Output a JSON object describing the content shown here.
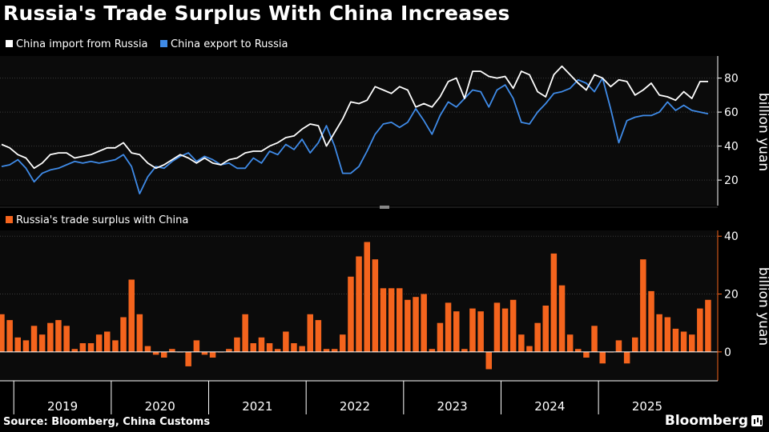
{
  "title": "Russia's Trade Surplus With China Increases",
  "source": "Source: Bloomberg, China Customs",
  "brand": "Bloomberg",
  "chart_data": [
    {
      "type": "line",
      "legend": [
        {
          "name": "China import from Russia",
          "color": "#ffffff"
        },
        {
          "name": "China export to Russia",
          "color": "#3f8be8"
        }
      ],
      "ylabel": "billion yuan",
      "ylim": [
        5,
        93
      ],
      "yticks": [
        20,
        40,
        60,
        80
      ],
      "x_start": "2018-11",
      "series": [
        {
          "name": "China import from Russia",
          "color": "#ffffff",
          "values": [
            41,
            39,
            35,
            33,
            27,
            30,
            35,
            36,
            36,
            33,
            34,
            35,
            37,
            39,
            39,
            42,
            36,
            35,
            30,
            27,
            29,
            32,
            35,
            33,
            30,
            33,
            30,
            29,
            32,
            33,
            36,
            37,
            37,
            40,
            42,
            45,
            46,
            50,
            53,
            52,
            40,
            48,
            56,
            66,
            65,
            67,
            75,
            73,
            71,
            75,
            73,
            63,
            65,
            63,
            69,
            78,
            80,
            68,
            84,
            84,
            81,
            80,
            81,
            74,
            84,
            82,
            72,
            69,
            82,
            87,
            82,
            77,
            73,
            82,
            80,
            75,
            79,
            78,
            70,
            73,
            77,
            70,
            69,
            67,
            72,
            68,
            78,
            78
          ]
        },
        {
          "name": "China export to Russia",
          "color": "#3f8be8",
          "values": [
            28,
            29,
            32,
            27,
            19,
            24,
            26,
            27,
            29,
            31,
            30,
            31,
            30,
            31,
            32,
            35,
            28,
            12,
            22,
            28,
            27,
            31,
            34,
            36,
            31,
            34,
            32,
            29,
            30,
            27,
            27,
            33,
            30,
            37,
            35,
            41,
            38,
            44,
            36,
            42,
            52,
            40,
            24,
            24,
            28,
            37,
            47,
            53,
            54,
            51,
            54,
            62,
            55,
            47,
            58,
            66,
            63,
            68,
            73,
            72,
            63,
            73,
            76,
            68,
            54,
            53,
            60,
            65,
            71,
            72,
            74,
            79,
            77,
            72,
            80,
            62,
            42,
            55,
            57,
            58,
            58,
            60,
            66,
            61,
            64,
            61,
            60,
            59
          ]
        }
      ]
    },
    {
      "type": "bar",
      "legend": [
        {
          "name": "Russia's trade surplus with China",
          "color": "#f4641d"
        }
      ],
      "ylabel": "billion yuan",
      "ylim": [
        -10,
        42
      ],
      "yticks": [
        0,
        20,
        40
      ],
      "x_start": "2018-11",
      "values": [
        13,
        11,
        5,
        4,
        9,
        6,
        10,
        11,
        9,
        1,
        3,
        3,
        6,
        7,
        4,
        12,
        25,
        13,
        2,
        -1,
        -2,
        1,
        0,
        -5,
        4,
        -1,
        -2,
        0,
        1,
        5,
        13,
        3,
        5,
        3,
        1,
        7,
        3,
        2,
        13,
        11,
        1,
        1,
        6,
        26,
        33,
        38,
        32,
        22,
        22,
        22,
        18,
        19,
        20,
        1,
        10,
        17,
        14,
        1,
        15,
        14,
        -6,
        17,
        15,
        18,
        6,
        2,
        10,
        16,
        34,
        23,
        6,
        1,
        -2,
        9,
        -4,
        0,
        4,
        -4,
        5,
        32,
        21,
        13,
        12,
        8,
        7,
        6,
        15,
        18
      ]
    }
  ],
  "x_axis": {
    "years": [
      "2019",
      "2020",
      "2021",
      "2022",
      "2023",
      "2024",
      "2025"
    ]
  }
}
